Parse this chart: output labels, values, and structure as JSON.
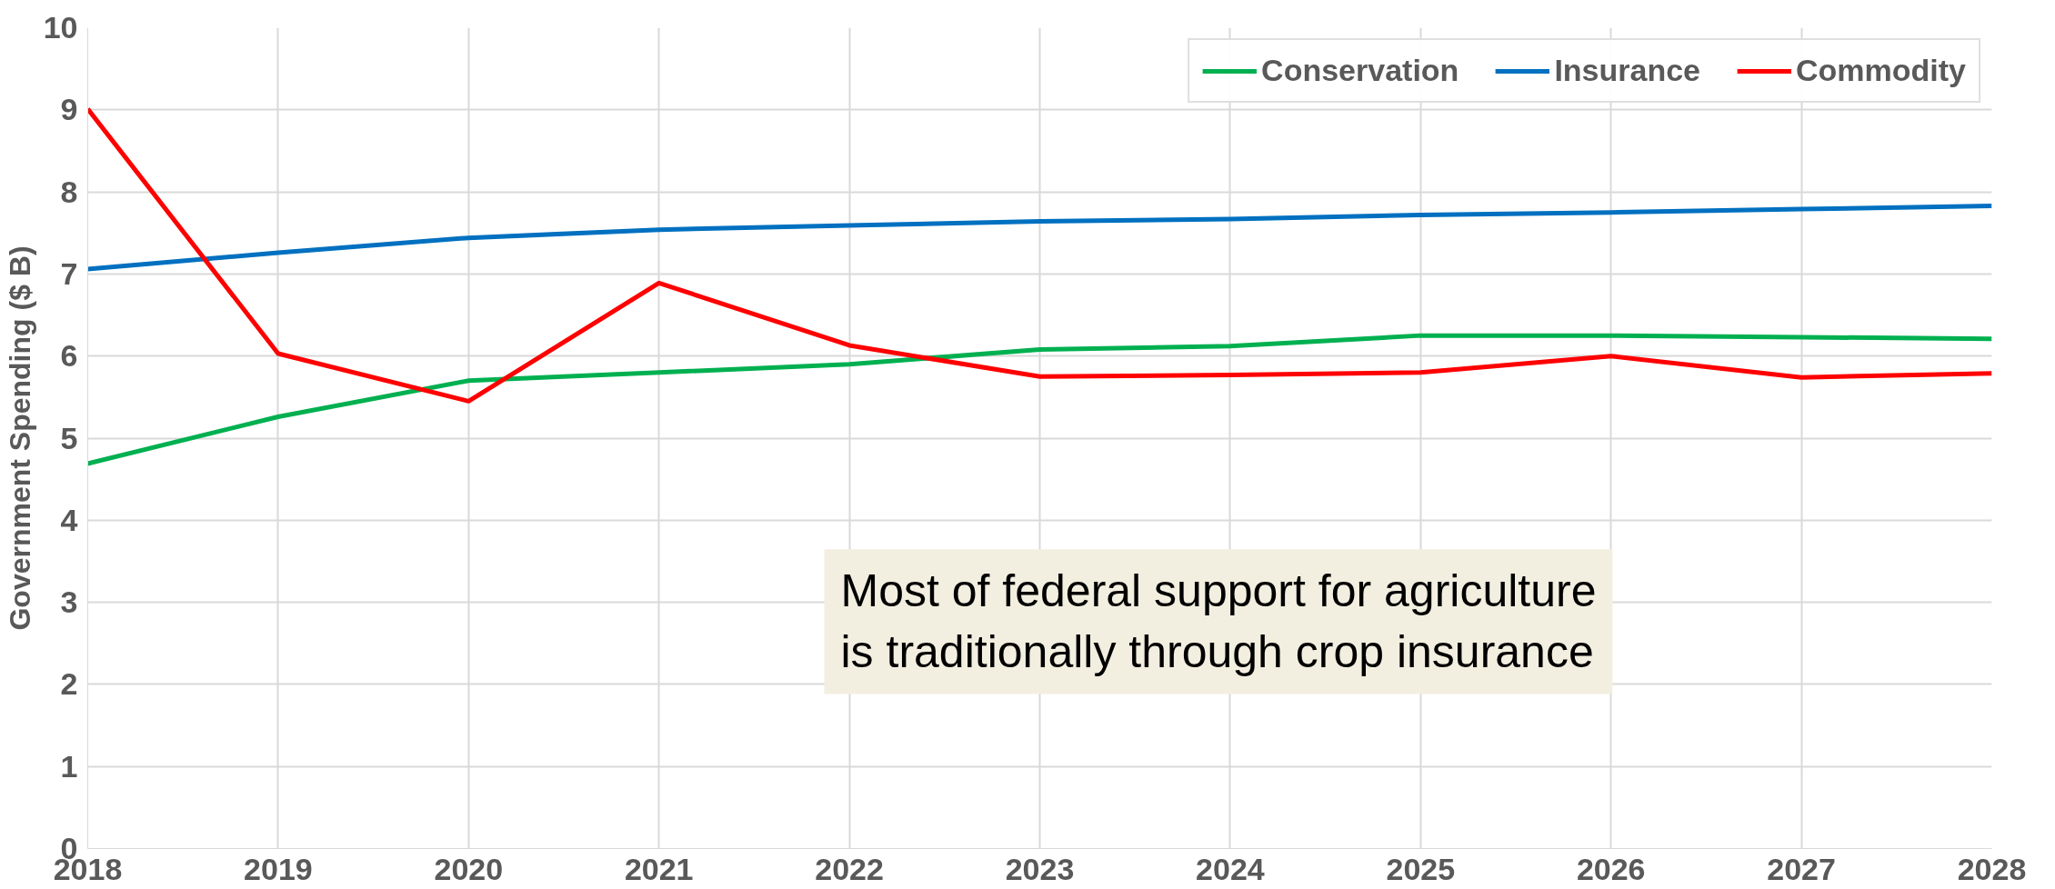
{
  "chart_data": {
    "type": "line",
    "ylabel": "Government Spending ($ B)",
    "x": [
      2018,
      2019,
      2020,
      2021,
      2022,
      2023,
      2024,
      2025,
      2026,
      2027,
      2028
    ],
    "series": [
      {
        "name": "Conservation",
        "color": "#00b050",
        "values": [
          4.69,
          5.26,
          5.7,
          5.8,
          5.9,
          6.08,
          6.12,
          6.25,
          6.25,
          6.23,
          6.21
        ]
      },
      {
        "name": "Insurance",
        "color": "#0070c0",
        "values": [
          7.06,
          7.26,
          7.44,
          7.54,
          7.59,
          7.64,
          7.67,
          7.72,
          7.75,
          7.79,
          7.83
        ]
      },
      {
        "name": "Commodity",
        "color": "#ff0000",
        "values": [
          9.01,
          6.03,
          5.45,
          6.89,
          6.13,
          5.75,
          5.77,
          5.8,
          6.0,
          5.74,
          5.79
        ]
      }
    ],
    "xlim": [
      2018,
      2028
    ],
    "xticks": [
      2018,
      2019,
      2020,
      2021,
      2022,
      2023,
      2024,
      2025,
      2026,
      2027,
      2028
    ],
    "ylim": [
      0,
      10
    ],
    "yticks": [
      0,
      1,
      2,
      3,
      4,
      5,
      6,
      7,
      8,
      9,
      10
    ],
    "grid": true,
    "legend": "top right",
    "marker": "none",
    "line_style": "solid",
    "annotations": [
      "Most of federal support for agriculture\nis traditionally through crop insurance"
    ]
  }
}
